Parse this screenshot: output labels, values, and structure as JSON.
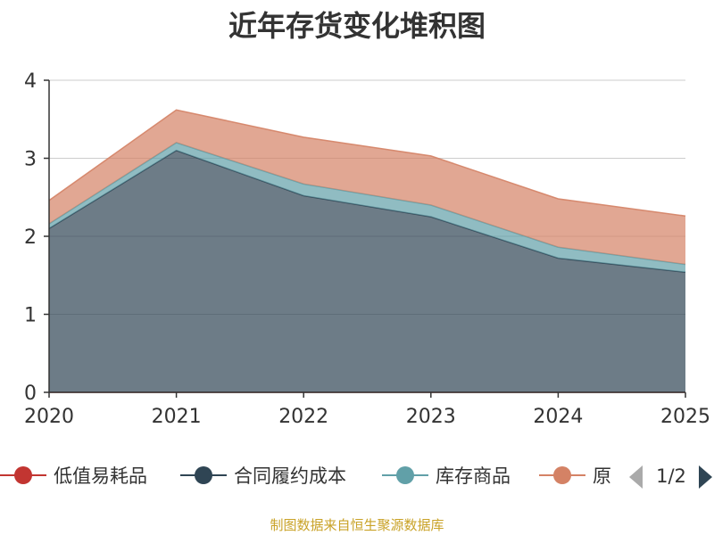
{
  "title": "近年存货变化堆积图",
  "source": "制图数据来自恒生聚源数据库",
  "legend": {
    "page_indicator": "1/2",
    "visible_items": [
      {
        "name": "低值易耗品",
        "color": "#c23531"
      },
      {
        "name": "合同履约成本",
        "color": "#2f4554"
      },
      {
        "name": "库存商品",
        "color": "#61a0a8"
      },
      {
        "name": "原",
        "color": "#d48265"
      }
    ]
  },
  "chart_data": {
    "type": "area",
    "stacked": true,
    "title": "近年存货变化堆积图",
    "x": [
      "2020",
      "2021",
      "2022",
      "2023",
      "2024",
      "2025"
    ],
    "ylim": [
      0,
      4
    ],
    "yticks": [
      0,
      1,
      2,
      3,
      4
    ],
    "grid": true,
    "legend_position": "bottom",
    "series": [
      {
        "name": "低值易耗品",
        "color": "#c23531",
        "values": [
          0,
          0,
          0,
          0,
          0,
          0
        ]
      },
      {
        "name": "合同履约成本",
        "color": "#2f4554",
        "values": [
          2.1,
          3.1,
          2.52,
          2.25,
          1.72,
          1.54
        ]
      },
      {
        "name": "库存商品",
        "color": "#61a0a8",
        "values": [
          0.06,
          0.1,
          0.15,
          0.15,
          0.14,
          0.1
        ]
      },
      {
        "name": "原",
        "color": "#d48265",
        "values": [
          0.3,
          0.42,
          0.6,
          0.63,
          0.62,
          0.62
        ]
      }
    ]
  }
}
